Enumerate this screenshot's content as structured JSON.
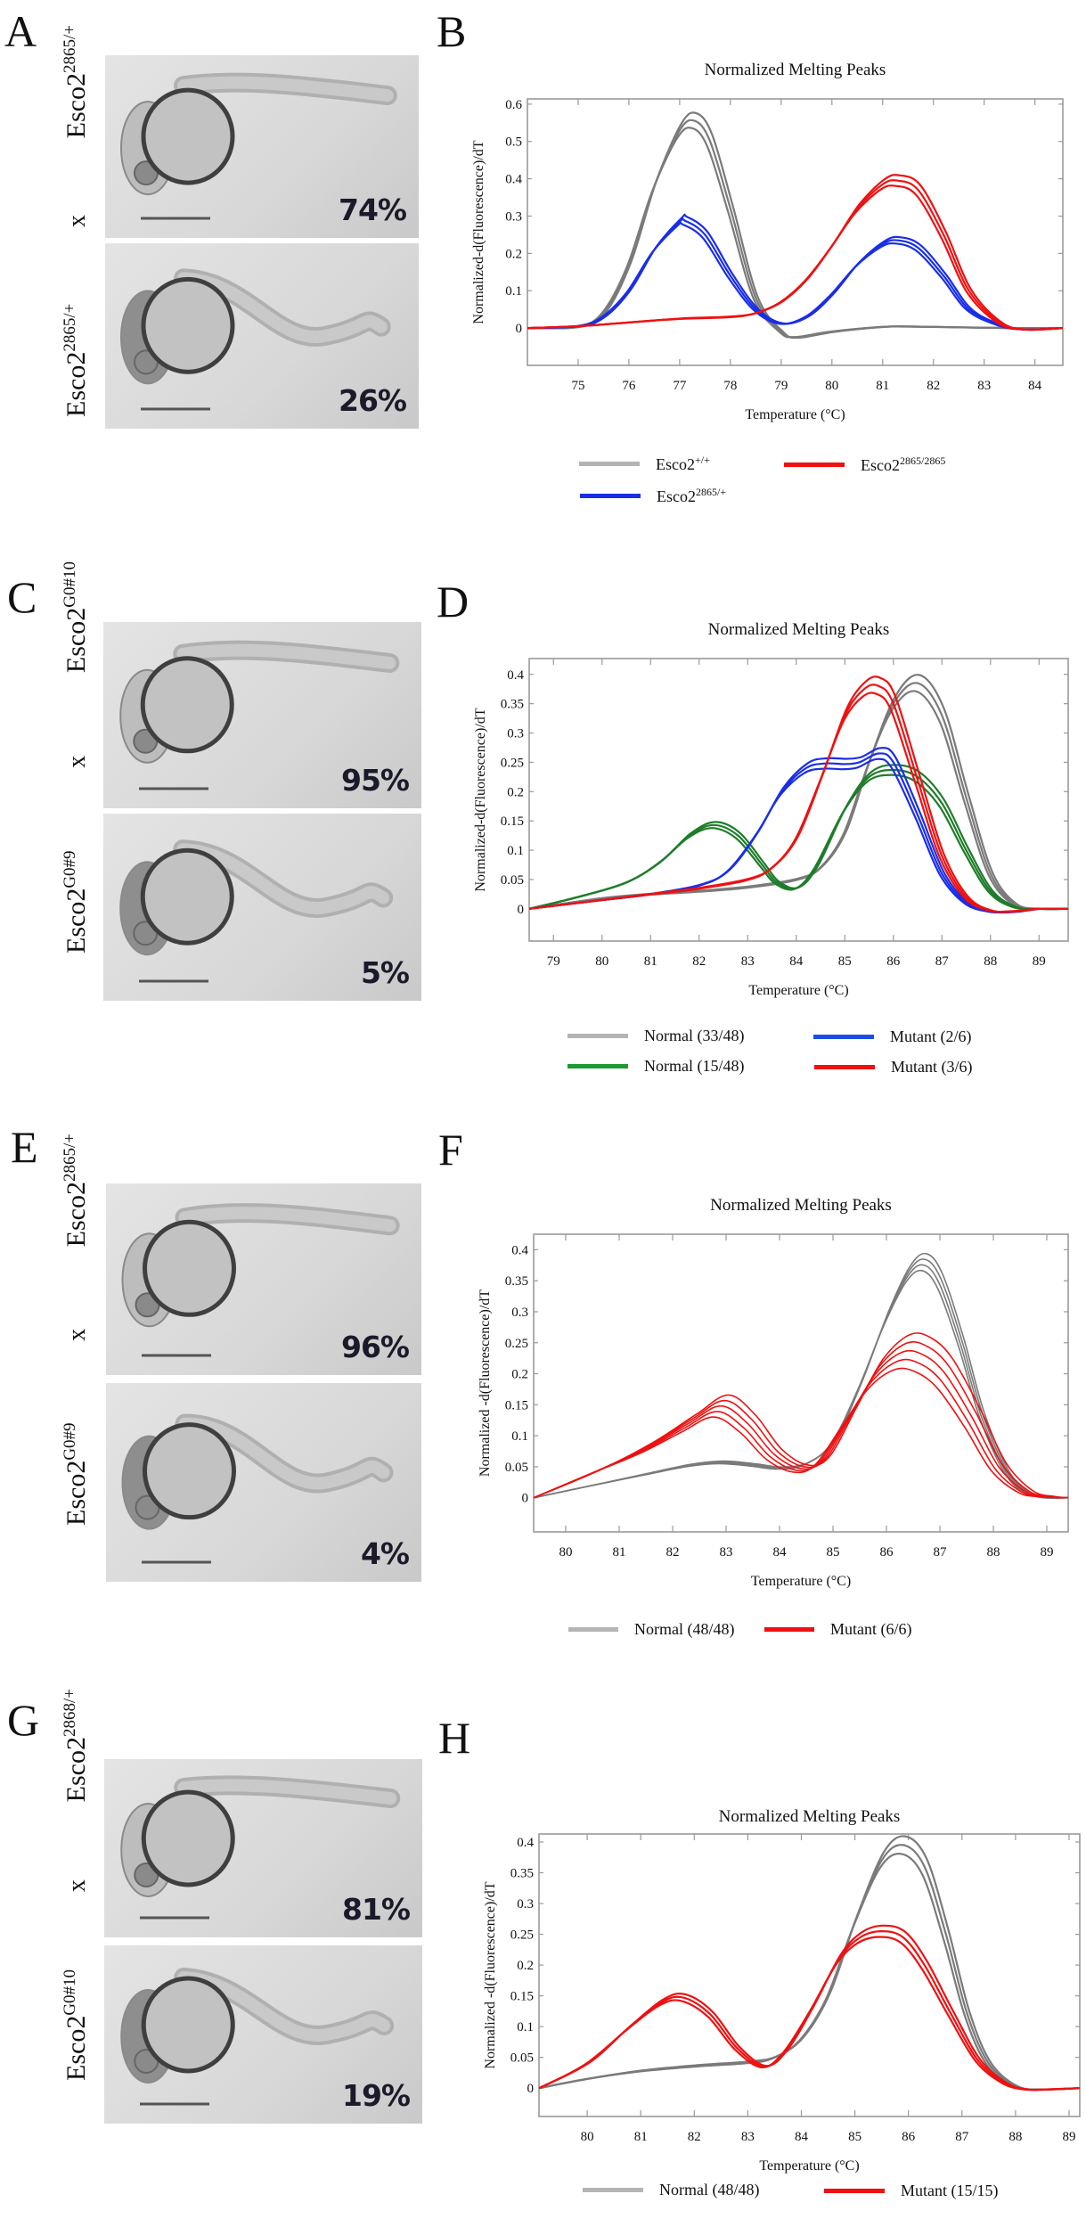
{
  "figure": {
    "rows": [
      {
        "photo_panel": {
          "letter": "A",
          "cross": {
            "left_parent": {
              "base": "Esco2",
              "sup": "2865/+"
            },
            "right_parent": {
              "base": "Esco2",
              "sup": "2865/+"
            },
            "x": "x"
          },
          "photos": [
            {
              "percent": "74%",
              "phenotype": "normal"
            },
            {
              "percent": "26%",
              "phenotype": "mutant"
            }
          ]
        },
        "chart_letter": "B"
      },
      {
        "photo_panel": {
          "letter": "C",
          "cross": {
            "left_parent": {
              "base": "Esco2",
              "sup": "G0#9"
            },
            "right_parent": {
              "base": "Esco2",
              "sup": "G0#10"
            },
            "x": "x"
          },
          "photos": [
            {
              "percent": "95%",
              "phenotype": "normal"
            },
            {
              "percent": "5%",
              "phenotype": "mutant"
            }
          ]
        },
        "chart_letter": "D"
      },
      {
        "photo_panel": {
          "letter": "E",
          "cross": {
            "left_parent": {
              "base": "Esco2",
              "sup": "G0#9"
            },
            "right_parent": {
              "base": "Esco2",
              "sup": "2865/+"
            },
            "x": "x"
          },
          "photos": [
            {
              "percent": "96%",
              "phenotype": "normal"
            },
            {
              "percent": "4%",
              "phenotype": "mutant"
            }
          ]
        },
        "chart_letter": "F"
      },
      {
        "photo_panel": {
          "letter": "G",
          "cross": {
            "left_parent": {
              "base": "Esco2",
              "sup": "G0#10"
            },
            "right_parent": {
              "base": "Esco2",
              "sup": "2868/+"
            },
            "x": "x"
          },
          "photos": [
            {
              "percent": "81%",
              "phenotype": "normal"
            },
            {
              "percent": "19%",
              "phenotype": "mutant"
            }
          ]
        },
        "chart_letter": "H"
      }
    ]
  },
  "colors": {
    "gray": "#7a7a7a",
    "legend_gray": "#b4b4b4",
    "red": "#ee1111",
    "blue": "#1a2ee8",
    "green": "#1e7d2a"
  },
  "chart_data": [
    {
      "panel": "B",
      "type": "line",
      "title": "Normalized Melting Peaks",
      "xlabel": "Temperature (°C)",
      "ylabel": "Normalized-d(Fluorescence)/dT",
      "xlim": [
        74.0,
        84.55
      ],
      "ylim": [
        -0.1,
        0.614
      ],
      "xticks": [
        75,
        76,
        77,
        78,
        79,
        80,
        81,
        82,
        83,
        84
      ],
      "yticks": [
        0,
        0.1,
        0.2,
        0.3,
        0.4,
        0.5,
        0.6
      ],
      "ytick_labels": [
        "0",
        "0.1",
        "0.2",
        "0.3",
        "0.4",
        "0.5",
        "0.6"
      ],
      "grid": false,
      "legend_position": "bottom",
      "series": [
        {
          "name": "Esco2",
          "sup": "+/+",
          "color_key": "gray",
          "x": [
            74.0,
            75.0,
            75.5,
            76.0,
            76.5,
            77.0,
            77.3,
            77.6,
            78.0,
            78.5,
            79.0,
            79.3,
            80.0,
            81.0,
            81.5,
            82.5,
            83.5,
            84.55
          ],
          "y": [
            0,
            0.003,
            0.04,
            0.17,
            0.38,
            0.53,
            0.555,
            0.5,
            0.32,
            0.08,
            -0.01,
            -0.025,
            -0.01,
            0.003,
            0.004,
            0.002,
            0,
            0
          ],
          "replicates": 3
        },
        {
          "name": "Esco2",
          "sup": "2865/+",
          "color_key": "blue",
          "x": [
            74.0,
            75.0,
            75.5,
            76.0,
            76.5,
            77.0,
            77.1,
            77.5,
            78.0,
            78.5,
            79.0,
            79.5,
            80.0,
            80.5,
            81.0,
            81.3,
            81.7,
            82.2,
            82.7,
            83.3,
            83.8,
            84.55
          ],
          "y": [
            0,
            0.005,
            0.03,
            0.1,
            0.21,
            0.285,
            0.288,
            0.25,
            0.14,
            0.05,
            0.012,
            0.03,
            0.09,
            0.17,
            0.225,
            0.235,
            0.215,
            0.14,
            0.05,
            0.008,
            -0.004,
            0
          ],
          "replicates": 3
        },
        {
          "name": "Esco2",
          "sup": "2865/2865",
          "color_key": "red",
          "x": [
            74.0,
            75.0,
            76.0,
            77.0,
            78.0,
            78.5,
            79.0,
            79.5,
            80.0,
            80.5,
            81.0,
            81.3,
            81.7,
            82.2,
            82.7,
            83.3,
            83.8,
            84.55
          ],
          "y": [
            0,
            0.005,
            0.015,
            0.025,
            0.03,
            0.04,
            0.07,
            0.13,
            0.22,
            0.32,
            0.385,
            0.395,
            0.37,
            0.25,
            0.1,
            0.015,
            -0.004,
            0
          ],
          "replicates": 3
        }
      ]
    },
    {
      "panel": "D",
      "type": "line",
      "title": "Normalized Melting Peaks",
      "xlabel": "Temperature (°C)",
      "ylabel": "Normalized-d(Fluorescence)/dT",
      "xlim": [
        78.5,
        89.6
      ],
      "ylim": [
        -0.055,
        0.427
      ],
      "xticks": [
        79,
        80,
        81,
        82,
        83,
        84,
        85,
        86,
        87,
        88,
        89
      ],
      "yticks": [
        0,
        0.05,
        0.1,
        0.15,
        0.2,
        0.25,
        0.3,
        0.35,
        0.4
      ],
      "ytick_labels": [
        "0",
        "0.05",
        "0.1",
        "0.15",
        "0.2",
        "0.25",
        "0.3",
        "0.35",
        "0.4"
      ],
      "grid": false,
      "legend_position": "bottom",
      "series": [
        {
          "name": "Normal (33/48)",
          "color_key": "gray",
          "x": [
            78.5,
            80.0,
            81.0,
            82.0,
            83.0,
            84.0,
            84.5,
            85.0,
            85.5,
            86.0,
            86.5,
            87.0,
            87.5,
            88.0,
            88.5,
            89.0,
            89.6
          ],
          "y": [
            0,
            0.018,
            0.025,
            0.03,
            0.037,
            0.05,
            0.07,
            0.13,
            0.25,
            0.35,
            0.385,
            0.33,
            0.19,
            0.06,
            0.008,
            0,
            0
          ],
          "replicates": 3
        },
        {
          "name": "Normal (15/48)",
          "color_key": "green",
          "x": [
            78.5,
            79.5,
            80.5,
            81.2,
            81.8,
            82.3,
            82.8,
            83.3,
            83.6,
            84.0,
            84.4,
            85.0,
            85.5,
            86.0,
            86.5,
            87.0,
            87.5,
            88.0,
            88.5,
            89.0,
            89.6
          ],
          "y": [
            0,
            0.02,
            0.045,
            0.08,
            0.125,
            0.143,
            0.125,
            0.075,
            0.045,
            0.035,
            0.07,
            0.17,
            0.225,
            0.237,
            0.225,
            0.18,
            0.1,
            0.03,
            0.003,
            0,
            0
          ],
          "replicates": 3
        },
        {
          "name": "Mutant (2/6)",
          "color_key": "blue",
          "x": [
            78.5,
            80.0,
            81.0,
            82.0,
            82.6,
            83.2,
            83.7,
            84.2,
            84.6,
            85.0,
            85.3,
            85.7,
            86.0,
            86.5,
            87.0,
            87.5,
            88.0,
            88.5,
            89.0,
            89.6
          ],
          "y": [
            0,
            0.015,
            0.025,
            0.04,
            0.065,
            0.13,
            0.2,
            0.24,
            0.248,
            0.247,
            0.25,
            0.265,
            0.25,
            0.16,
            0.06,
            0.01,
            -0.005,
            -0.005,
            0,
            0
          ],
          "replicates": 3
        },
        {
          "name": "Mutant (3/6)",
          "color_key": "red",
          "x": [
            78.5,
            80.0,
            81.0,
            82.0,
            83.0,
            83.5,
            84.0,
            84.5,
            85.0,
            85.4,
            85.7,
            86.0,
            86.5,
            87.0,
            87.5,
            88.0,
            88.5,
            89.0,
            89.6
          ],
          "y": [
            0,
            0.015,
            0.025,
            0.035,
            0.05,
            0.07,
            0.12,
            0.22,
            0.33,
            0.375,
            0.38,
            0.35,
            0.22,
            0.09,
            0.02,
            -0.003,
            -0.004,
            0,
            0
          ],
          "replicates": 3
        }
      ]
    },
    {
      "panel": "F",
      "type": "line",
      "title": "Normalized Melting Peaks",
      "xlabel": "Temperature (°C)",
      "ylabel": "Normalized -d(Fluorescence)/dT",
      "xlim": [
        79.4,
        89.4
      ],
      "ylim": [
        -0.055,
        0.425
      ],
      "xticks": [
        80,
        81,
        82,
        83,
        84,
        85,
        86,
        87,
        88,
        89
      ],
      "yticks": [
        0,
        0.05,
        0.1,
        0.15,
        0.2,
        0.25,
        0.3,
        0.35,
        0.4
      ],
      "ytick_labels": [
        "0",
        "0.05",
        "0.1",
        "0.15",
        "0.2",
        "0.25",
        "0.3",
        "0.35",
        "0.4"
      ],
      "grid": false,
      "legend_position": "bottom",
      "series": [
        {
          "name": "Normal (48/48)",
          "color_key": "gray",
          "x": [
            79.4,
            80.5,
            81.5,
            82.3,
            82.9,
            83.5,
            84.0,
            84.5,
            85.0,
            85.5,
            86.0,
            86.4,
            86.7,
            87.0,
            87.4,
            87.8,
            88.3,
            88.8,
            89.4
          ],
          "y": [
            0,
            0.02,
            0.038,
            0.052,
            0.057,
            0.053,
            0.048,
            0.055,
            0.09,
            0.18,
            0.29,
            0.36,
            0.38,
            0.35,
            0.25,
            0.13,
            0.035,
            0.003,
            0
          ],
          "replicates": 4
        },
        {
          "name": "Mutant (6/6)",
          "color_key": "red",
          "x": [
            79.4,
            80.5,
            81.5,
            82.3,
            82.9,
            83.4,
            83.9,
            84.4,
            84.8,
            85.3,
            85.8,
            86.3,
            86.7,
            87.1,
            87.6,
            88.1,
            88.6,
            89.0,
            89.4
          ],
          "y": [
            0,
            0.04,
            0.08,
            0.12,
            0.148,
            0.12,
            0.07,
            0.047,
            0.06,
            0.13,
            0.2,
            0.235,
            0.23,
            0.2,
            0.13,
            0.05,
            0.01,
            0.002,
            0
          ],
          "replicates": 5,
          "replicate_spread": {
            "x_shift": 0.14,
            "y_scale": 0.04
          }
        }
      ]
    },
    {
      "panel": "H",
      "type": "line",
      "title": "Normalized Melting Peaks",
      "xlabel": "Temperature (°C)",
      "ylabel": "Normalized -d(Fluorescence)/dT",
      "xlim": [
        79.1,
        89.2
      ],
      "ylim": [
        -0.046,
        0.413
      ],
      "xticks": [
        80,
        81,
        82,
        83,
        84,
        85,
        86,
        87,
        88,
        89
      ],
      "yticks": [
        0,
        0.05,
        0.1,
        0.15,
        0.2,
        0.25,
        0.3,
        0.35,
        0.4
      ],
      "ytick_labels": [
        "0",
        "0.05",
        "0.1",
        "0.15",
        "0.2",
        "0.25",
        "0.3",
        "0.35",
        "0.4"
      ],
      "grid": false,
      "legend_position": "bottom",
      "series": [
        {
          "name": "Normal (48/48)",
          "color_key": "gray",
          "x": [
            79.1,
            80.0,
            81.0,
            82.0,
            83.0,
            83.5,
            84.0,
            84.5,
            85.0,
            85.5,
            85.9,
            86.3,
            86.7,
            87.1,
            87.5,
            88.0,
            88.5,
            89.2
          ],
          "y": [
            0,
            0.015,
            0.028,
            0.036,
            0.042,
            0.05,
            0.08,
            0.15,
            0.27,
            0.37,
            0.395,
            0.36,
            0.25,
            0.12,
            0.04,
            0.003,
            -0.002,
            0
          ],
          "replicates": 3
        },
        {
          "name": "Mutant (15/15)",
          "color_key": "red",
          "x": [
            79.1,
            80.0,
            80.8,
            81.4,
            81.8,
            82.3,
            82.8,
            83.3,
            83.7,
            84.2,
            84.7,
            85.1,
            85.5,
            85.9,
            86.3,
            86.8,
            87.3,
            87.8,
            88.2,
            88.6,
            89.2
          ],
          "y": [
            0,
            0.04,
            0.1,
            0.14,
            0.147,
            0.12,
            0.065,
            0.035,
            0.06,
            0.13,
            0.21,
            0.245,
            0.255,
            0.245,
            0.2,
            0.12,
            0.045,
            0.008,
            -0.002,
            -0.002,
            0
          ],
          "replicates": 3
        }
      ]
    }
  ]
}
